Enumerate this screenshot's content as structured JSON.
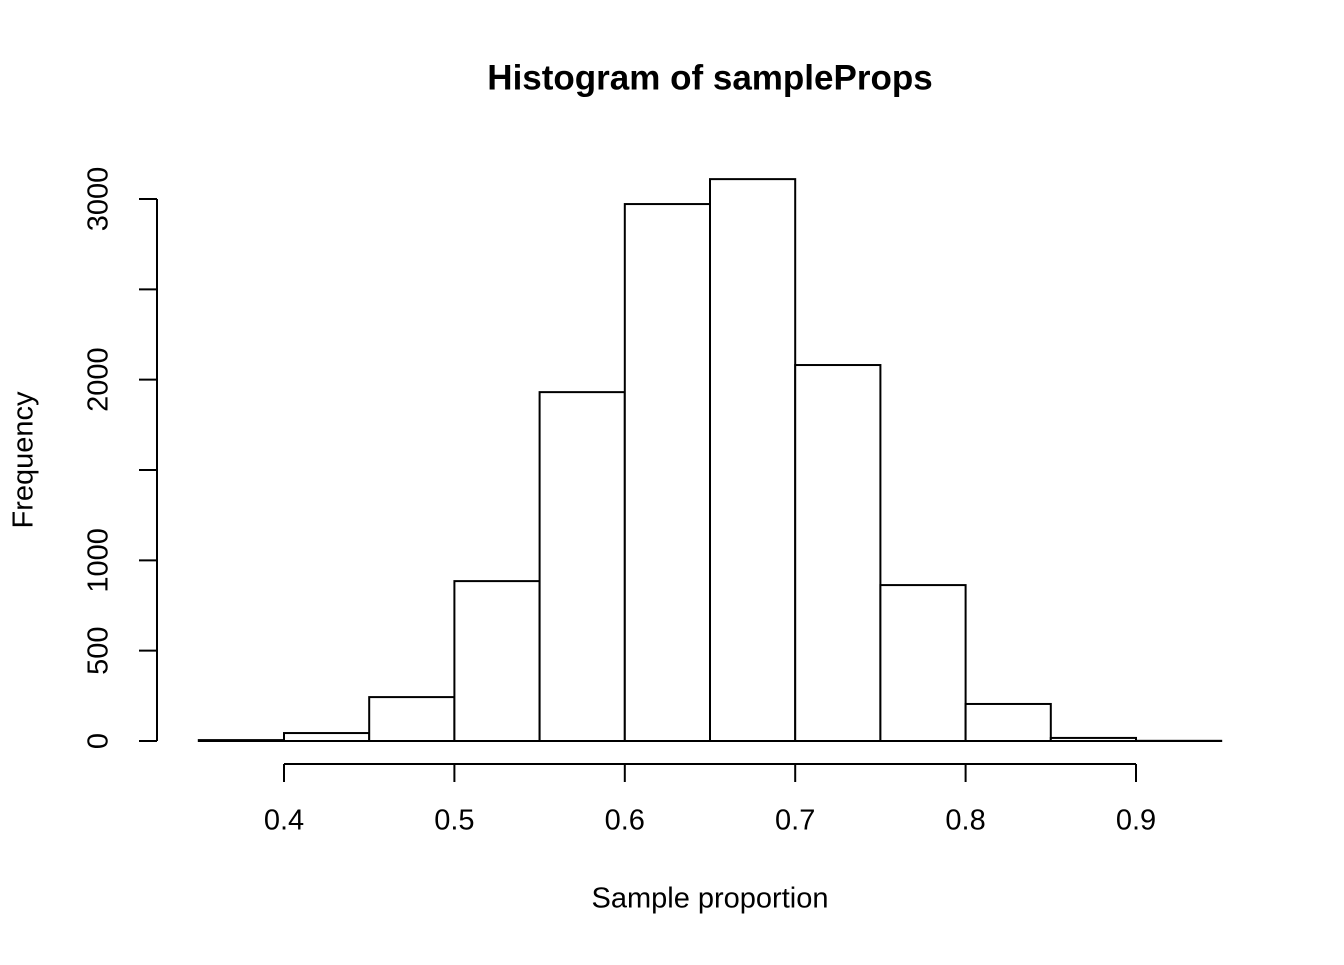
{
  "chart_data": {
    "type": "histogram",
    "title": "Histogram of sampleProps",
    "x_label": "Sample proportion",
    "y_label": "Frequency",
    "bins": [
      0.35,
      0.4,
      0.45,
      0.5,
      0.55,
      0.6,
      0.65,
      0.7,
      0.75,
      0.8,
      0.85,
      0.9,
      0.95
    ],
    "values": [
      5,
      44,
      243,
      885,
      1931,
      2972,
      3110,
      2081,
      863,
      205,
      17,
      1
    ],
    "color": "#ffffff",
    "xlim": [
      0.4,
      0.9
    ],
    "xticks": [
      0.4,
      0.5,
      0.6,
      0.7,
      0.8,
      0.9
    ],
    "ylim": [
      0,
      3000
    ],
    "yticks": [
      0,
      500,
      1000,
      2000,
      3000
    ],
    "yticks_unlabeled": [
      1500,
      2500
    ]
  }
}
